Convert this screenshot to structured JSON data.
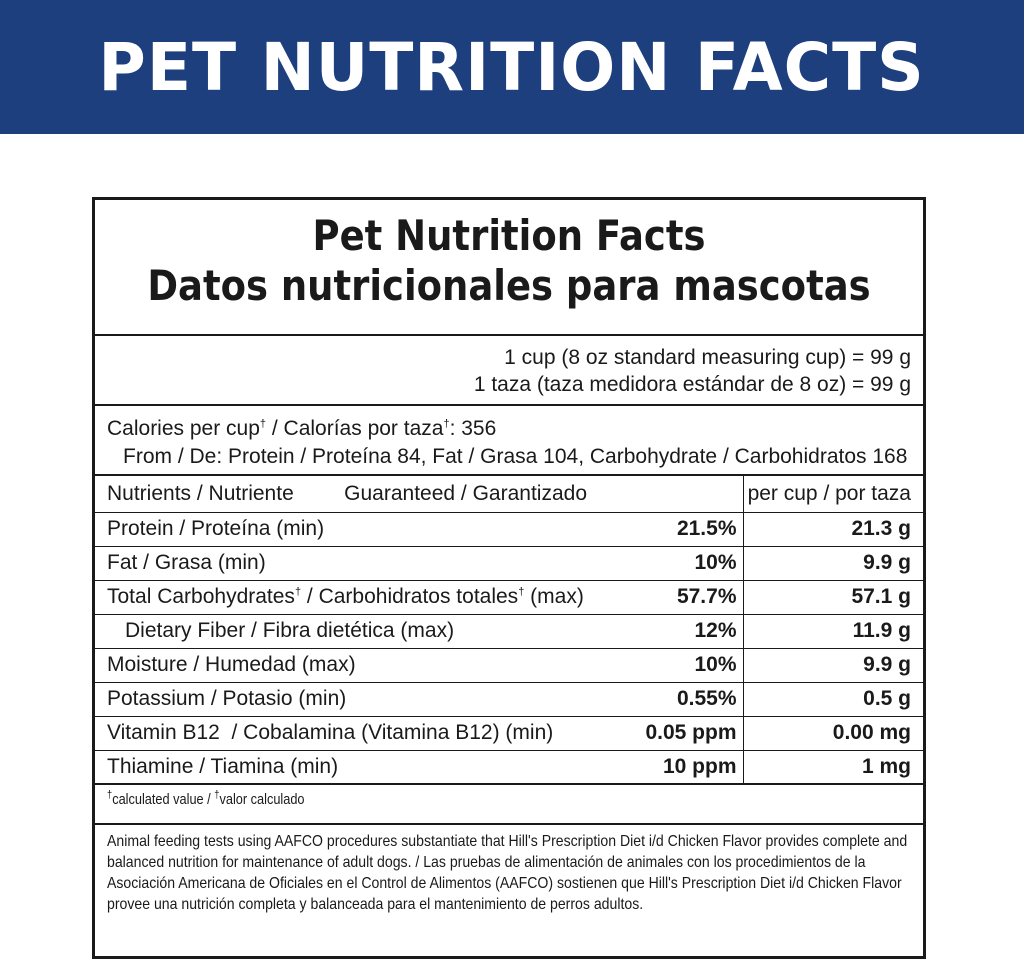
{
  "banner": {
    "title": "PET NUTRITION FACTS"
  },
  "panel": {
    "title_en": "Pet Nutrition Facts",
    "title_es": "Datos nutricionales para mascotas",
    "serving_en": "1 cup (8 oz standard measuring cup) = 99 g",
    "serving_es": "1 taza (taza medidora estándar de 8 oz) = 99 g",
    "calories_en": "Calories per cup",
    "calories_es": " / Calorías por taza",
    "calories_value": ": 356",
    "dagger": "†",
    "calories_from": "From / De: Protein / Proteína 84, Fat / Grasa 104, Carbohydrate / Carbohidratos 168",
    "table": {
      "header": {
        "nutrient": "Nutrients / Nutriente",
        "guaranteed": "Guaranteed / Garantizado",
        "per_cup": "per cup / por taza"
      },
      "rows": [
        {
          "name": "Protein / Proteína (min)",
          "guaranteed": "21.5%",
          "per_cup": "21.3 g"
        },
        {
          "name": "Fat / Grasa (min)",
          "guaranteed": "10%",
          "per_cup": "9.9 g"
        },
        {
          "name_part1": "Total Carbohydrates",
          "name_part2": " / Carbohidratos totales",
          "name_part3": " (max)",
          "guaranteed": "57.7%",
          "per_cup": "57.1 g"
        },
        {
          "name": "Dietary Fiber / Fibra dietética (max)",
          "guaranteed": "12%",
          "per_cup": "11.9 g"
        },
        {
          "name": "Moisture / Humedad (max)",
          "guaranteed": "10%",
          "per_cup": "9.9 g"
        },
        {
          "name": "Potassium / Potasio (min)",
          "guaranteed": "0.55%",
          "per_cup": "0.5 g"
        },
        {
          "name": "Vitamin B12  / Cobalamina (Vitamina B12) (min)",
          "guaranteed": "0.05 ppm",
          "per_cup": "0.00 mg"
        },
        {
          "name": "Thiamine / Tiamina (min)",
          "guaranteed": "10 ppm",
          "per_cup": "1 mg"
        }
      ]
    },
    "footnote_en": "calculated value / ",
    "footnote_es": "valor calculado",
    "statement": [
      "Animal feeding tests using AAFCO procedures substantiate that Hill's Prescription Diet i/d Chicken Flavor provides complete and",
      "balanced nutrition for maintenance of adult dogs. / Las pruebas de alimentación de animales con los procedimientos de la",
      "Asociación Americana de Oficiales en el Control de Alimentos (AAFCO) sostienen que Hill's Prescription Diet i/d Chicken Flavor",
      "provee una nutrición completa y balanceada para el mantenimiento de perros adultos."
    ]
  },
  "colors": {
    "banner_bg": "#1d3f7e",
    "banner_text": "#ffffff",
    "text": "#1a1a1a"
  }
}
